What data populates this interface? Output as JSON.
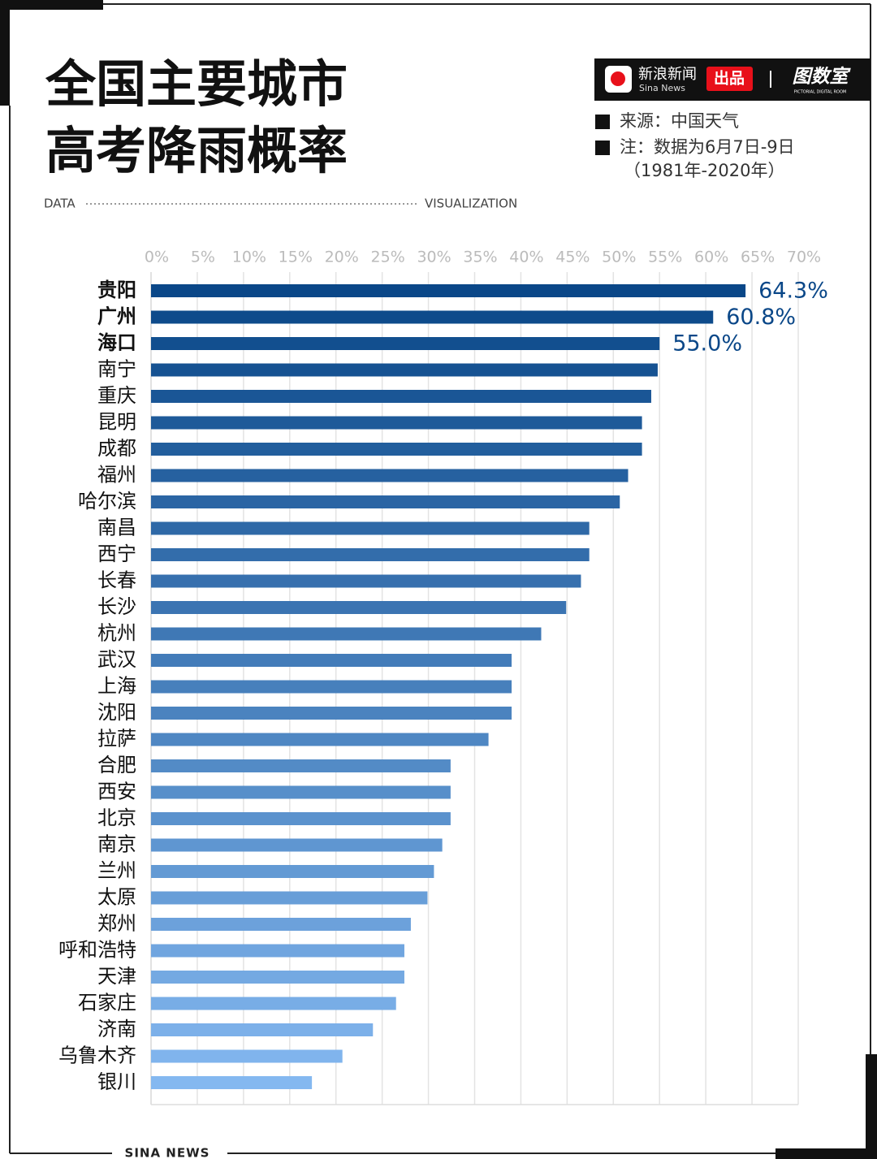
{
  "header": {
    "title_lines": [
      "全国主要城市",
      "高考降雨概率"
    ],
    "tag_left": "DATA",
    "tag_right": "VISUALIZATION",
    "brand": {
      "name": "新浪新闻",
      "name_en": "Sina News",
      "badge": "出品",
      "partner": "图数室",
      "partner_en": "PICTORIAL DIGITAL ROOM"
    },
    "source": "来源：中国天气",
    "note": "注：数据为6月7日-9日",
    "note_range": "（1981年-2020年）"
  },
  "footer": {
    "text": "SINA NEWS"
  },
  "chart_data": {
    "type": "barh",
    "categories": [
      "贵阳",
      "广州",
      "海口",
      "南宁",
      "重庆",
      "昆明",
      "成都",
      "福州",
      "哈尔滨",
      "南昌",
      "西宁",
      "长春",
      "长沙",
      "杭州",
      "武汉",
      "上海",
      "沈阳",
      "拉萨",
      "合肥",
      "西安",
      "北京",
      "南京",
      "兰州",
      "太原",
      "郑州",
      "呼和浩特",
      "天津",
      "石家庄",
      "济南",
      "乌鲁木齐",
      "银川"
    ],
    "values": [
      64.3,
      60.8,
      55.0,
      54.8,
      54.1,
      53.1,
      53.1,
      51.6,
      50.7,
      47.4,
      47.4,
      46.5,
      44.9,
      42.2,
      39.0,
      39.0,
      39.0,
      36.5,
      32.4,
      32.4,
      32.4,
      31.5,
      30.6,
      29.9,
      28.1,
      27.4,
      27.4,
      26.5,
      24.0,
      20.7,
      17.4
    ],
    "value_labels": [
      "64.3%",
      "60.8%",
      "55.0%",
      null,
      null,
      null,
      null,
      null,
      null,
      null,
      null,
      null,
      null,
      null,
      null,
      null,
      null,
      null,
      null,
      null,
      null,
      null,
      null,
      null,
      null,
      null,
      null,
      null,
      null,
      null,
      null
    ],
    "color_range": [
      "#0a4788",
      "#84b8f0"
    ],
    "xlim": [
      0,
      70
    ],
    "xticks": [
      {
        "value": 0,
        "label": "0%"
      },
      {
        "value": 5,
        "label": "5%"
      },
      {
        "value": 10,
        "label": "10%"
      },
      {
        "value": 15,
        "label": "15%"
      },
      {
        "value": 20,
        "label": "20%"
      },
      {
        "value": 25,
        "label": "25%"
      },
      {
        "value": 30,
        "label": "30%"
      },
      {
        "value": 35,
        "label": "35%"
      },
      {
        "value": 40,
        "label": "40%"
      },
      {
        "value": 45,
        "label": "45%"
      },
      {
        "value": 50,
        "label": "50%"
      },
      {
        "value": 55,
        "label": "55%"
      },
      {
        "value": 60,
        "label": "60%"
      },
      {
        "value": 65,
        "label": "65%"
      },
      {
        "value": 70,
        "label": "70%"
      }
    ],
    "grid": true
  }
}
